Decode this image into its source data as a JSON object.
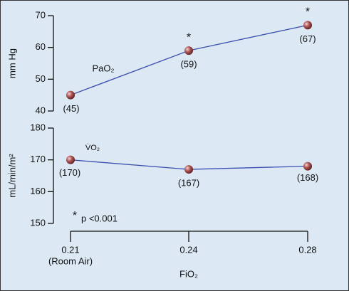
{
  "chart_data": [
    {
      "type": "line",
      "ylabel": "mm Hg",
      "ylim": [
        40,
        70
      ],
      "yticks": [
        40,
        50,
        60,
        70
      ],
      "series": [
        {
          "name": "PaO₂",
          "color": "#3a4fb0",
          "values": [
            45,
            59,
            67
          ],
          "value_labels": [
            "(45)",
            "(59)",
            "(67)"
          ],
          "significance": [
            null,
            "*",
            "*"
          ]
        }
      ]
    },
    {
      "type": "line",
      "ylabel": "mL/min/m²",
      "ylim": [
        150,
        180
      ],
      "yticks": [
        150,
        160,
        170,
        180
      ],
      "categories": [
        "0.21",
        "0.24",
        "0.28"
      ],
      "category_note": "(Room Air)",
      "xlabel": "FiO₂",
      "series": [
        {
          "name": "V̇O₂",
          "color": "#3a4fb0",
          "values": [
            170,
            167,
            168
          ],
          "value_labels": [
            "(170)",
            "(167)",
            "(168)"
          ]
        }
      ]
    }
  ],
  "footnote_marker": "*",
  "footnote": "p <0.001"
}
